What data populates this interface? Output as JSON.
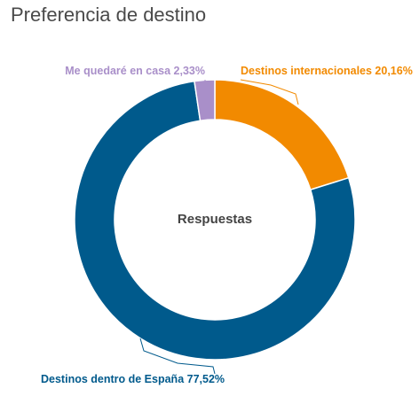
{
  "chart_data": {
    "type": "pie",
    "title": "Preferencia de destino",
    "center_label": "Respuestas",
    "slices": [
      {
        "label": "Destinos internacionales",
        "value": 20.16,
        "display": "Destinos internacionales 20,16%",
        "color": "#f28a00"
      },
      {
        "label": "Destinos dentro de España",
        "value": 77.52,
        "display": "Destinos dentro de España 77,52%",
        "color": "#005a8c"
      },
      {
        "label": "Me quedaré en casa",
        "value": 2.33,
        "display": "Me quedaré en casa 2,33%",
        "color": "#a98fc9"
      }
    ],
    "legend": "none"
  }
}
